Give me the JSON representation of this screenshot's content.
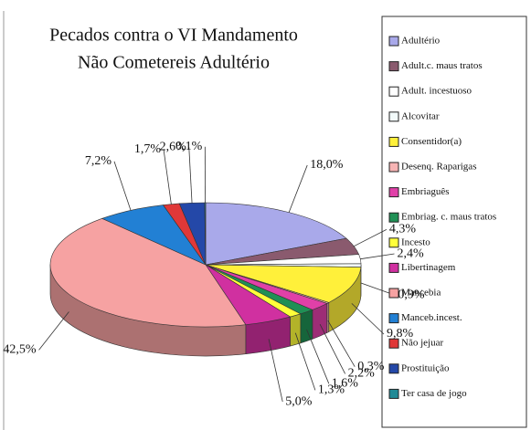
{
  "chart_data": {
    "type": "pie",
    "title": [
      "Pecados contra o VI Mandamento",
      "Não Cometereis Adultério"
    ],
    "categories": [
      "Adultério",
      "Adult.c. maus tratos",
      "Adult. incestuoso",
      "Alcovitar",
      "Consentidor(a)",
      "Desenq. Raparigas",
      "Embriaguês",
      "Embriag. c. maus tratos",
      "Incesto",
      "Libertinagem",
      "Mancebia",
      "Manceb.incest.",
      "Não jejuar",
      "Prostituição",
      "Ter casa de jogo"
    ],
    "values": [
      18.0,
      4.3,
      2.4,
      0.9,
      9.8,
      0.3,
      2.2,
      1.6,
      1.3,
      5.0,
      42.5,
      7.2,
      1.7,
      2.6,
      0.1
    ],
    "value_labels": [
      "18,0%",
      "4,3%",
      "2,4%",
      "0,9%",
      "9,8%",
      "0,3%",
      "2,2%",
      "1,6%",
      "1,3%",
      "5,0%",
      "42,5%",
      "7,2%",
      "1,7%",
      "2,6%",
      "0,1%"
    ],
    "colors": [
      "#a9a9ea",
      "#8a5a6e",
      "#ffffff",
      "#f2fafa",
      "#fff03a",
      "#f6b4b4",
      "#e040a8",
      "#1f9055",
      "#ffff3a",
      "#d030a0",
      "#f6a2a2",
      "#2280d4",
      "#e03838",
      "#2448a8",
      "#208a96"
    ],
    "legend": "right"
  }
}
